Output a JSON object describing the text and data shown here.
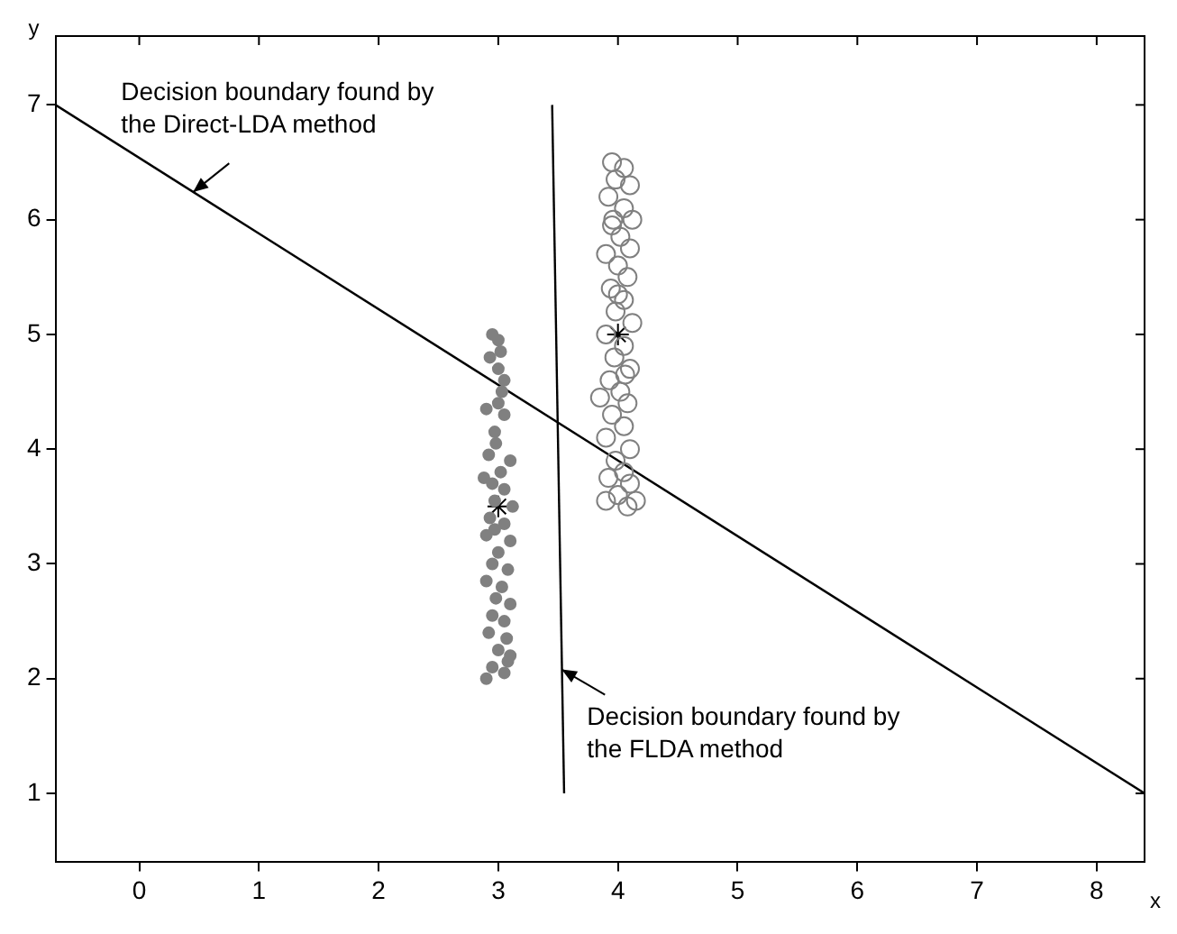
{
  "chart_data": {
    "type": "scatter",
    "xlabel": "x",
    "ylabel": "y",
    "xlim": [
      -0.7,
      8.4
    ],
    "ylim": [
      0.4,
      7.6
    ],
    "xticks": [
      0,
      1,
      2,
      3,
      4,
      5,
      6,
      7,
      8
    ],
    "yticks": [
      1,
      2,
      3,
      4,
      5,
      6,
      7
    ],
    "grid": false,
    "legend": false,
    "series": [
      {
        "marker": "circle",
        "color": "#808080",
        "x": [
          2.95,
          3.0,
          3.02,
          2.93,
          3.0,
          3.05,
          3.03,
          2.9,
          3.05,
          2.97,
          2.98,
          2.92,
          3.1,
          3.02,
          2.88,
          2.95,
          3.05,
          2.97,
          3.12,
          2.93,
          3.05,
          2.9,
          3.1,
          3.0,
          2.95,
          3.08,
          2.9,
          3.03,
          2.98,
          3.1,
          2.95,
          3.05,
          2.92,
          3.07,
          3.0,
          3.1,
          2.95,
          3.05,
          2.9,
          3.08,
          3.0,
          2.97
        ],
        "values": [
          5.0,
          4.95,
          4.85,
          4.8,
          4.7,
          4.6,
          4.5,
          4.35,
          4.3,
          4.15,
          4.05,
          3.95,
          3.9,
          3.8,
          3.75,
          3.7,
          3.65,
          3.55,
          3.5,
          3.4,
          3.35,
          3.25,
          3.2,
          3.1,
          3.0,
          2.95,
          2.85,
          2.8,
          2.7,
          2.65,
          2.55,
          2.5,
          2.4,
          2.35,
          2.25,
          2.2,
          2.1,
          2.05,
          2.0,
          2.15,
          4.4,
          3.3
        ]
      },
      {
        "marker": "circle",
        "color": "#808080",
        "x": [
          3.95,
          4.05,
          3.98,
          4.1,
          3.92,
          4.05,
          4.12,
          3.95,
          4.02,
          4.1,
          3.9,
          4.0,
          4.08,
          3.94,
          4.05,
          3.98,
          4.12,
          3.9,
          4.05,
          3.97,
          4.1,
          3.93,
          4.02,
          3.85,
          4.08,
          3.95,
          4.05,
          3.9,
          4.1,
          3.98,
          4.05,
          3.92,
          4.1,
          4.0,
          3.9,
          4.08,
          4.15,
          3.96,
          4.0,
          4.06
        ],
        "values": [
          6.5,
          6.45,
          6.35,
          6.3,
          6.2,
          6.1,
          6.0,
          5.95,
          5.85,
          5.75,
          5.7,
          5.6,
          5.5,
          5.4,
          5.3,
          5.2,
          5.1,
          5.0,
          4.9,
          4.8,
          4.7,
          4.6,
          4.5,
          4.45,
          4.4,
          4.3,
          4.2,
          4.1,
          4.0,
          3.9,
          3.8,
          3.75,
          3.7,
          3.6,
          3.55,
          3.5,
          3.55,
          6.0,
          5.35,
          4.65
        ]
      },
      {
        "type": "line",
        "marker": "none",
        "color": "#000000",
        "x": [
          -0.7,
          8.4
        ],
        "values": [
          7.0,
          1.0
        ]
      },
      {
        "type": "line",
        "marker": "none",
        "color": "#000000",
        "x": [
          3.45,
          3.55
        ],
        "values": [
          7.0,
          1.0
        ]
      },
      {
        "marker": "cross",
        "color": "#000000",
        "x": [
          3.0,
          4.0
        ],
        "values": [
          3.5,
          5.0
        ]
      }
    ],
    "annotations": [
      {
        "text": "Decision boundary found by\nthe Direct-LDA method",
        "x": 0.45,
        "y": 6.24
      },
      {
        "text": "Decision boundary found by\nthe FLDA method",
        "x": 3.53,
        "y": 2.08
      }
    ]
  }
}
